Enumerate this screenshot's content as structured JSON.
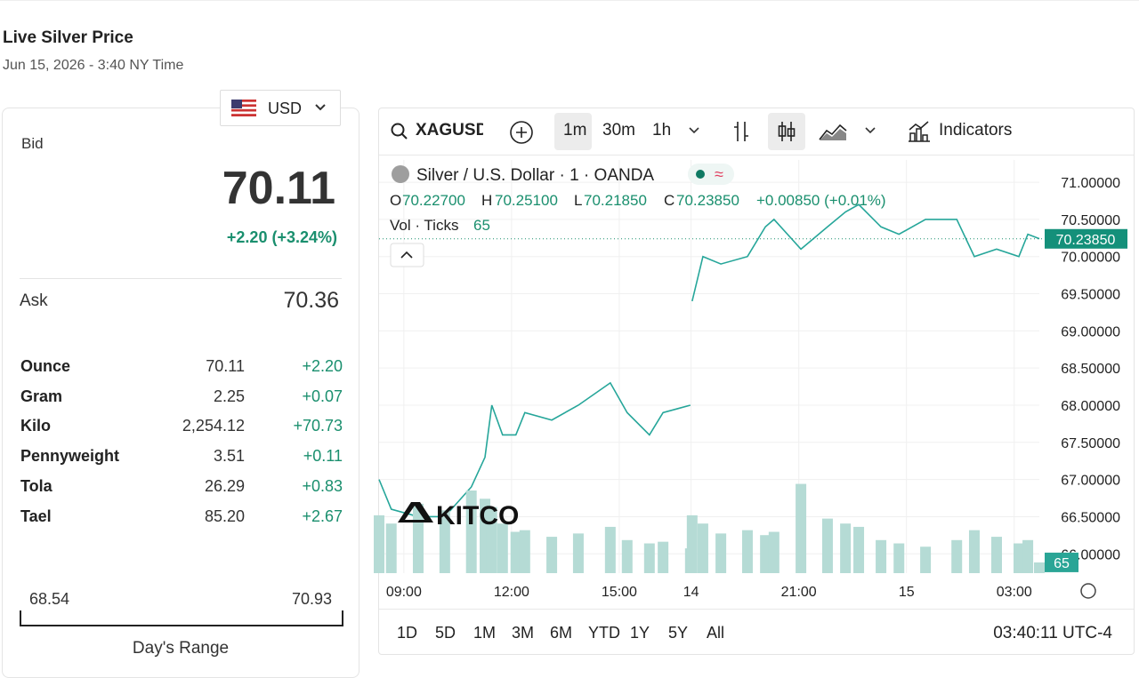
{
  "header": {
    "title": "Live Silver Price",
    "subtitle": "Jun 15, 2026 - 3:40 NY Time"
  },
  "currency": "USD",
  "quote": {
    "bid_label": "Bid",
    "bid": "70.11",
    "change": "+2.20 (+3.24%)",
    "ask_label": "Ask",
    "ask": "70.36"
  },
  "table": {
    "rows": [
      [
        "Ounce",
        "70.11",
        "+2.20"
      ],
      [
        "Gram",
        "2.25",
        "+0.07"
      ],
      [
        "Kilo",
        "2,254.12",
        "+70.73"
      ],
      [
        "Pennyweight",
        "3.51",
        "+0.11"
      ],
      [
        "Tola",
        "26.29",
        "+0.83"
      ],
      [
        "Tael",
        "85.20",
        "+2.67"
      ]
    ]
  },
  "range": {
    "low": "68.54",
    "high": "70.93",
    "label": "Day's Range"
  },
  "toolbar": {
    "symbol": "XAGUSD",
    "intervals": [
      "1m",
      "30m",
      "1h"
    ],
    "indicators": "Indicators"
  },
  "legend": {
    "name": "Silver / U.S. Dollar · 1 · OANDA",
    "open_label": "O",
    "open": "70.22700",
    "high_label": "H",
    "high": "70.25100",
    "low_label": "L",
    "low": "70.21850",
    "close_label": "C",
    "close": "70.23850",
    "change": "+0.00850 (+0.01%)",
    "volume_label": "Vol · Ticks",
    "volume": "65"
  },
  "watermark": "KITCO",
  "periods": [
    "1D",
    "5D",
    "1M",
    "3M",
    "6M",
    "YTD",
    "1Y",
    "5Y",
    "All"
  ],
  "clock": "03:40:11 UTC-4",
  "chart_data": {
    "type": "line",
    "grid": true,
    "x": [
      8.31,
      8.65,
      9.4,
      10.14,
      10.88,
      11.26,
      11.45,
      11.75,
      12.12,
      12.37,
      13.12,
      13.86,
      14.75,
      15.22,
      15.84,
      16.22,
      16.98,
      17.0,
      17.03,
      17.33,
      17.83,
      18.57,
      19.07,
      19.31,
      20.06,
      20.8,
      21.3,
      21.67,
      22.29,
      22.79,
      23.53,
      24.4,
      24.89,
      25.51,
      26.13,
      26.38,
      26.7
    ],
    "series": [
      {
        "name": "Silver / U.S. Dollar",
        "color": "#26a69a",
        "values": [
          67.0,
          66.6,
          66.5,
          66.5,
          66.9,
          67.3,
          68.0,
          67.6,
          67.6,
          67.9,
          67.8,
          68.0,
          68.3,
          67.9,
          67.6,
          67.9,
          68.0,
          null,
          69.4,
          70.0,
          69.9,
          70.0,
          70.4,
          70.5,
          70.1,
          70.4,
          70.6,
          70.7,
          70.4,
          70.3,
          70.5,
          70.5,
          70.0,
          70.1,
          70.0,
          70.3,
          70.24
        ]
      },
      {
        "name": "Vol",
        "color": "#b5dbd5",
        "axis": "y2",
        "values": [
          350,
          300,
          420,
          380,
          500,
          450,
          400,
          300,
          250,
          260,
          220,
          240,
          280,
          200,
          180,
          190,
          150,
          null,
          350,
          300,
          240,
          260,
          230,
          250,
          540,
          330,
          300,
          280,
          200,
          180,
          160,
          200,
          260,
          220,
          180,
          200,
          65
        ]
      }
    ],
    "xlim": [
      8.31,
      26.7
    ],
    "xticks": [
      {
        "value": 9,
        "label": "09:00"
      },
      {
        "value": 12,
        "label": "12:00"
      },
      {
        "value": 15,
        "label": "15:00"
      },
      {
        "value": 17,
        "label": "14"
      },
      {
        "value": 20,
        "label": "21:00"
      },
      {
        "value": 23,
        "label": "15"
      },
      {
        "value": 26,
        "label": "03:00"
      }
    ],
    "ylim": [
      65.74,
      71.3
    ],
    "yticks": [
      {
        "value": 66,
        "label": "66.00000"
      },
      {
        "value": 66.5,
        "label": "66.50000"
      },
      {
        "value": 67,
        "label": "67.00000"
      },
      {
        "value": 67.5,
        "label": "67.50000"
      },
      {
        "value": 68,
        "label": "68.00000"
      },
      {
        "value": 68.5,
        "label": "68.50000"
      },
      {
        "value": 69,
        "label": "69.00000"
      },
      {
        "value": 69.5,
        "label": "69.50000"
      },
      {
        "value": 70,
        "label": "70.00000"
      },
      {
        "value": 70.5,
        "label": "70.50000"
      },
      {
        "value": 71,
        "label": "71.00000"
      }
    ],
    "y2lim": [
      0,
      2500
    ],
    "last_price": {
      "value": 70.2385,
      "label": "70.23850"
    },
    "last_volume": 65
  }
}
